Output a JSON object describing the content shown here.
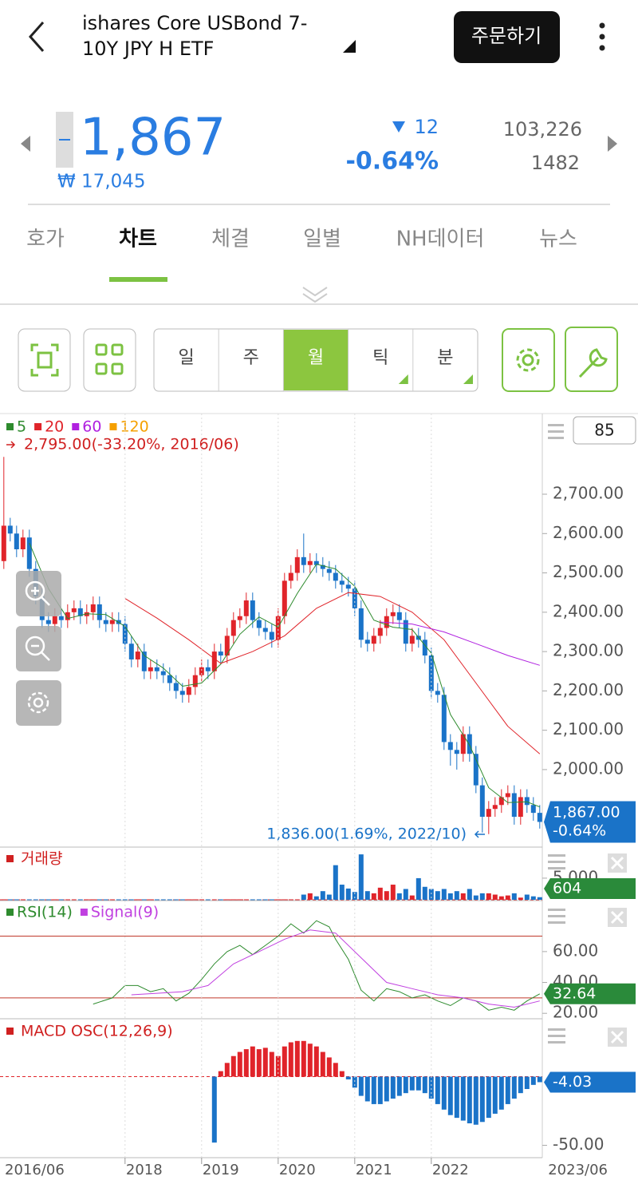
{
  "header": {
    "title_lines": [
      "ishares Core USBond 7-",
      "10Y JPY H ETF"
    ],
    "order_button": "주문하기"
  },
  "quote": {
    "price": "1,867",
    "price_krw": "₩ 17,045",
    "change": "12",
    "change_pct": "-0.64%",
    "volume": "103,226",
    "count": "1482"
  },
  "tabs": [
    "호가",
    "차트",
    "체결",
    "일별",
    "NH데이터",
    "뉴스"
  ],
  "active_tab": 1,
  "periods": [
    "일",
    "주",
    "월",
    "틱",
    "분"
  ],
  "active_period": 2,
  "chart_data": [
    {
      "type": "candlestick",
      "visible_count": 85,
      "xlim": [
        -0.6,
        84.4
      ],
      "ylim": [
        1805,
        2905
      ],
      "yticks": [
        {
          "value": 2000,
          "label": "2,000.00"
        },
        {
          "value": 2100,
          "label": "2,100.00"
        },
        {
          "value": 2200,
          "label": "2,200.00"
        },
        {
          "value": 2300,
          "label": "2,300.00"
        },
        {
          "value": 2400,
          "label": "2,400.00"
        },
        {
          "value": 2500,
          "label": "2,500.00"
        },
        {
          "value": 2600,
          "label": "2,600.00"
        },
        {
          "value": 2700,
          "label": "2,700.00"
        }
      ],
      "up_color": "#e0242a",
      "down_color": "#1a73c8",
      "tag_color": "#1a73c8",
      "open": [
        2530,
        2620,
        2600,
        2560,
        2590,
        2510,
        2440,
        2380,
        2370,
        2390,
        2380,
        2400,
        2410,
        2390,
        2400,
        2420,
        2380,
        2370,
        2380,
        2370,
        2320,
        2280,
        2300,
        2250,
        2260,
        2250,
        2240,
        2220,
        2200,
        2190,
        2210,
        2240,
        2260,
        2250,
        2300,
        2290,
        2340,
        2380,
        2390,
        2430,
        2380,
        2360,
        2350,
        2330,
        2390,
        2480,
        2500,
        2540,
        2520,
        2530,
        2520,
        2510,
        2500,
        2480,
        2470,
        2460,
        2410,
        2330,
        2320,
        2340,
        2360,
        2390,
        2400,
        2380,
        2320,
        2340,
        2330,
        2290,
        2200,
        2190,
        2070,
        2050,
        2040,
        2090,
        2040,
        1960,
        1880,
        1900,
        1910,
        1930,
        1940,
        1880,
        1930,
        1910,
        1890
      ],
      "high": [
        2795,
        2640,
        2620,
        2610,
        2610,
        2530,
        2460,
        2400,
        2410,
        2410,
        2420,
        2430,
        2430,
        2420,
        2440,
        2440,
        2400,
        2400,
        2400,
        2390,
        2340,
        2320,
        2320,
        2280,
        2280,
        2270,
        2260,
        2240,
        2220,
        2230,
        2260,
        2280,
        2280,
        2320,
        2320,
        2360,
        2400,
        2410,
        2450,
        2450,
        2400,
        2380,
        2370,
        2410,
        2500,
        2520,
        2560,
        2600,
        2550,
        2550,
        2540,
        2530,
        2520,
        2500,
        2490,
        2480,
        2430,
        2350,
        2360,
        2380,
        2410,
        2420,
        2420,
        2400,
        2360,
        2360,
        2350,
        2310,
        2220,
        2210,
        2090,
        2070,
        2110,
        2110,
        2060,
        1980,
        1920,
        1930,
        1950,
        1960,
        1960,
        1950,
        1950,
        1930,
        1910
      ],
      "low": [
        2510,
        2580,
        2540,
        2540,
        2490,
        2420,
        2360,
        2350,
        2350,
        2360,
        2360,
        2380,
        2370,
        2370,
        2380,
        2360,
        2350,
        2350,
        2350,
        2300,
        2260,
        2260,
        2230,
        2230,
        2230,
        2220,
        2200,
        2180,
        2170,
        2170,
        2190,
        2220,
        2230,
        2230,
        2270,
        2270,
        2320,
        2360,
        2370,
        2360,
        2340,
        2330,
        2310,
        2310,
        2370,
        2460,
        2480,
        2500,
        2500,
        2500,
        2490,
        2480,
        2460,
        2450,
        2440,
        2390,
        2310,
        2300,
        2300,
        2320,
        2340,
        2370,
        2360,
        2300,
        2300,
        2310,
        2270,
        2180,
        2170,
        2050,
        2010,
        2000,
        2020,
        2020,
        1940,
        1840,
        1836,
        1880,
        1890,
        1910,
        1860,
        1860,
        1890,
        1870,
        1850
      ],
      "close": [
        2620,
        2600,
        2560,
        2590,
        2510,
        2440,
        2380,
        2370,
        2390,
        2380,
        2400,
        2410,
        2390,
        2400,
        2420,
        2380,
        2370,
        2380,
        2370,
        2320,
        2280,
        2300,
        2250,
        2260,
        2250,
        2240,
        2220,
        2200,
        2190,
        2210,
        2240,
        2260,
        2250,
        2300,
        2290,
        2340,
        2380,
        2390,
        2430,
        2380,
        2360,
        2350,
        2330,
        2390,
        2480,
        2500,
        2540,
        2520,
        2530,
        2520,
        2510,
        2500,
        2480,
        2470,
        2460,
        2410,
        2330,
        2320,
        2340,
        2360,
        2390,
        2400,
        2380,
        2320,
        2340,
        2330,
        2290,
        2200,
        2190,
        2070,
        2050,
        2040,
        2090,
        2040,
        1960,
        1880,
        1900,
        1910,
        1930,
        1940,
        1880,
        1930,
        1910,
        1890,
        1867
      ],
      "last_label": "1,867.00",
      "last_change": "-0.64%",
      "high_note": "2,795.00(-33.20%, 2016/06)",
      "low_note": "1,836.00(1.69%, 2022/10)",
      "series": [
        {
          "name": "5",
          "color": "#2e8b2e",
          "x": [
            4,
            7,
            10,
            13,
            16,
            19,
            22,
            25,
            28,
            31,
            34,
            37,
            40,
            43,
            46,
            49,
            52,
            55,
            58,
            61,
            64,
            67,
            70,
            73,
            76,
            79,
            82,
            84
          ],
          "values": [
            2576,
            2460,
            2384,
            2396,
            2394,
            2364,
            2290,
            2258,
            2212,
            2220,
            2268,
            2344,
            2388,
            2362,
            2448,
            2522,
            2510,
            2466,
            2380,
            2362,
            2356,
            2296,
            2140,
            2062,
            1954,
            1916,
            1918,
            1905
          ]
        },
        {
          "name": "20",
          "color": "#e0242a",
          "x": [
            19,
            24,
            29,
            34,
            39,
            44,
            49,
            54,
            59,
            64,
            69,
            74,
            79,
            84
          ],
          "values": [
            2435,
            2385,
            2330,
            2270,
            2300,
            2340,
            2410,
            2450,
            2440,
            2400,
            2330,
            2220,
            2110,
            2040
          ]
        },
        {
          "name": "60",
          "color": "#b020e0",
          "x": [
            59,
            64,
            69,
            74,
            79,
            84
          ],
          "values": [
            2375,
            2370,
            2350,
            2320,
            2290,
            2265
          ]
        },
        {
          "name": "120",
          "color": "#f5a000",
          "x": [],
          "values": []
        }
      ]
    },
    {
      "type": "bar",
      "title": "거래량",
      "xlim": [
        -0.6,
        84.4
      ],
      "ylim": [
        0,
        12000
      ],
      "yticks": [
        {
          "value": 5000,
          "label": "5,000"
        }
      ],
      "up_color": "#e0242a",
      "down_color": "#1a73c8",
      "tag_color": "#2a8a3a",
      "values": [
        100,
        100,
        100,
        100,
        100,
        100,
        100,
        100,
        100,
        100,
        100,
        100,
        100,
        100,
        100,
        100,
        100,
        100,
        100,
        100,
        100,
        100,
        100,
        100,
        100,
        100,
        100,
        100,
        100,
        100,
        100,
        100,
        100,
        100,
        100,
        100,
        100,
        100,
        100,
        100,
        100,
        100,
        100,
        100,
        100,
        100,
        100,
        1200,
        1500,
        800,
        2000,
        1200,
        8000,
        3500,
        2600,
        1800,
        10500,
        2000,
        1500,
        2800,
        2000,
        3500,
        1500,
        2500,
        1000,
        5000,
        3000,
        2500,
        2000,
        2500,
        1500,
        2000,
        1500,
        2500,
        1000,
        1500,
        1500,
        1200,
        800,
        1000,
        1500,
        500,
        1200,
        800,
        604
      ]
    },
    {
      "type": "line",
      "xlim": [
        -0.6,
        84.4
      ],
      "ylim": [
        17,
        92
      ],
      "yticks": [
        {
          "value": 20,
          "label": "20.00"
        },
        {
          "value": 40,
          "label": "40.00"
        },
        {
          "value": 60,
          "label": "60.00"
        }
      ],
      "levels": [
        70,
        30
      ],
      "level_color": "#c0392b",
      "tag_color": "#2a8a3a",
      "series": [
        {
          "name": "RSI(14)",
          "color": "#2e8b2e",
          "x": [
            14,
            17,
            19,
            21,
            23,
            25,
            27,
            29,
            31,
            33,
            35,
            37,
            39,
            41,
            43,
            45,
            47,
            49,
            51,
            52,
            54,
            56,
            58,
            60,
            62,
            64,
            66,
            68,
            70,
            72,
            74,
            76,
            78,
            80,
            82,
            84
          ],
          "values": [
            26,
            30,
            38,
            38,
            34,
            36,
            28,
            33,
            42,
            52,
            60,
            64,
            58,
            64,
            70,
            78,
            72,
            80,
            76,
            68,
            55,
            35,
            28,
            36,
            34,
            30,
            32,
            28,
            25,
            30,
            28,
            22,
            24,
            22,
            28,
            32.64
          ]
        },
        {
          "name": "Signal(9)",
          "color": "#c040e0",
          "x": [
            20,
            24,
            28,
            32,
            36,
            40,
            44,
            48,
            52,
            56,
            60,
            64,
            68,
            72,
            76,
            80,
            84
          ],
          "values": [
            32,
            33,
            34,
            38,
            52,
            60,
            68,
            74,
            72,
            56,
            40,
            36,
            32,
            30,
            26,
            24,
            28
          ]
        }
      ]
    },
    {
      "type": "bar",
      "title": "MACD OSC(12,26,9)",
      "xlim": [
        -0.6,
        84.4
      ],
      "ylim": [
        -59,
        41
      ],
      "yticks": [
        {
          "value": -50,
          "label": "-50.00"
        }
      ],
      "up_color": "#e0242a",
      "down_color": "#1a73c8",
      "tag_color": "#1a73c8",
      "values": [
        null,
        null,
        null,
        null,
        null,
        null,
        null,
        null,
        null,
        null,
        null,
        null,
        null,
        null,
        null,
        null,
        null,
        null,
        null,
        null,
        null,
        null,
        null,
        null,
        null,
        null,
        null,
        null,
        null,
        null,
        null,
        null,
        null,
        -48,
        4,
        10,
        15,
        18,
        20,
        22,
        20,
        21,
        18,
        15,
        22,
        25,
        26,
        26,
        24,
        22,
        18,
        14,
        10,
        4,
        -2,
        -8,
        -14,
        -18,
        -20,
        -20,
        -18,
        -16,
        -14,
        -12,
        -10,
        -10,
        -12,
        -16,
        -20,
        -24,
        -28,
        -30,
        -32,
        -34,
        -35,
        -33,
        -30,
        -27,
        -24,
        -20,
        -16,
        -12,
        -9,
        -6,
        -4.03
      ],
      "xticks": [
        {
          "value": 0,
          "label": "2016/06"
        },
        {
          "value": 19,
          "label": "2018"
        },
        {
          "value": 31,
          "label": "2019"
        },
        {
          "value": 43,
          "label": "2020"
        },
        {
          "value": 55,
          "label": "2021"
        },
        {
          "value": 67,
          "label": "2022"
        },
        {
          "value": 84,
          "label": "2023/06"
        }
      ]
    }
  ]
}
